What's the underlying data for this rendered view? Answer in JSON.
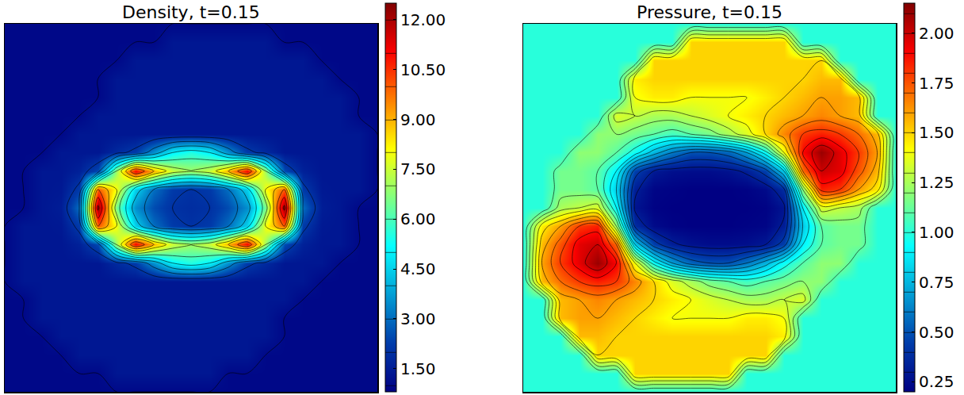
{
  "chart_data": [
    {
      "type": "heatmap",
      "title": "Density, t=0.15",
      "color": "jet",
      "tick_labels": false,
      "colorbar_range": [
        0.8,
        12.5
      ],
      "colorbar_ticks": [
        {
          "value": 1.5,
          "label": "1.50"
        },
        {
          "value": 3,
          "label": "3.00"
        },
        {
          "value": 4.5,
          "label": "4.50"
        },
        {
          "value": 6,
          "label": "6.00"
        },
        {
          "value": 7.5,
          "label": "7.50"
        },
        {
          "value": 9,
          "label": "9.00"
        },
        {
          "value": 10.5,
          "label": "10.50"
        },
        {
          "value": 12,
          "label": "12.00"
        }
      ],
      "cells": [
        [
          1,
          1,
          1,
          1,
          1,
          1,
          1,
          1,
          1,
          1,
          1,
          1,
          1,
          1,
          1,
          1,
          1,
          1,
          1,
          1,
          1
        ],
        [
          1,
          1,
          1,
          1,
          1,
          1,
          1,
          1,
          1,
          1.35,
          1.35,
          1.35,
          1.35,
          1.35,
          1.35,
          1,
          1,
          1,
          1,
          1,
          1
        ],
        [
          1,
          1,
          1,
          1,
          1,
          1,
          1,
          1.35,
          1.35,
          1.35,
          1.35,
          1.35,
          1.35,
          1.35,
          1.35,
          1.35,
          1.35,
          1,
          1,
          1,
          1
        ],
        [
          1,
          1,
          1,
          1,
          1,
          1,
          1.35,
          1.35,
          1.35,
          1.35,
          1.35,
          1.35,
          1.35,
          1.35,
          1.35,
          1.35,
          1.35,
          1.35,
          1,
          1,
          1
        ],
        [
          1,
          1,
          1,
          1,
          1,
          1,
          1.35,
          1.35,
          1.35,
          1.35,
          1.35,
          1.35,
          1.35,
          1.35,
          1.35,
          1.35,
          1.35,
          1.35,
          1.35,
          1,
          1
        ],
        [
          1,
          1,
          1,
          1,
          1,
          1.35,
          1.35,
          1.35,
          1.35,
          1.35,
          1.35,
          1.35,
          1.35,
          1.35,
          1.35,
          1.35,
          1.35,
          1.35,
          1.35,
          1,
          1
        ],
        [
          1,
          1,
          1,
          1,
          1.35,
          1.35,
          1.35,
          1.35,
          1.35,
          1.35,
          1.35,
          1.35,
          1.35,
          1.35,
          1.35,
          1.35,
          1.35,
          1.35,
          1.35,
          1.35,
          1
        ],
        [
          1,
          1,
          1,
          1.35,
          1.35,
          1.35,
          1.8,
          2.2,
          3.5,
          5,
          5.5,
          5,
          3.5,
          2.2,
          1.8,
          1.35,
          1.35,
          1.35,
          1.35,
          1.35,
          1
        ],
        [
          1,
          1,
          1.35,
          1.35,
          1.6,
          2.5,
          7,
          11,
          9,
          7.5,
          7,
          7.5,
          9,
          11,
          7,
          2.5,
          1.6,
          1.35,
          1.35,
          1.35,
          1
        ],
        [
          1,
          1,
          1.35,
          1.4,
          2.2,
          10,
          8,
          4.5,
          3,
          2.2,
          2,
          2.2,
          3,
          4.5,
          8,
          10,
          2.2,
          1.4,
          1.35,
          1.35,
          1
        ],
        [
          1,
          1,
          1.35,
          1.5,
          3,
          12.3,
          6.5,
          3.5,
          2.5,
          2,
          1.9,
          2,
          2.5,
          3.5,
          6.5,
          12.3,
          3,
          1.5,
          1.35,
          1,
          1
        ],
        [
          1,
          1.35,
          1.35,
          1.4,
          2.2,
          10,
          8,
          4.5,
          3,
          2.2,
          2,
          2.2,
          3,
          4.5,
          8,
          10,
          2.2,
          1.4,
          1.35,
          1,
          1
        ],
        [
          1,
          1.35,
          1.35,
          1.35,
          1.6,
          2.5,
          7,
          11,
          9,
          7.5,
          7,
          7.5,
          9,
          11,
          7,
          2.5,
          1.6,
          1.35,
          1.35,
          1,
          1
        ],
        [
          1,
          1.35,
          1.35,
          1.35,
          1.35,
          1.35,
          1.8,
          2.2,
          3.5,
          5,
          5.5,
          5,
          3.5,
          2.2,
          1.8,
          1.35,
          1.35,
          1.35,
          1,
          1,
          1
        ],
        [
          1,
          1.35,
          1.35,
          1.35,
          1.35,
          1.35,
          1.35,
          1.35,
          1.35,
          1.35,
          1.35,
          1.35,
          1.35,
          1.35,
          1.35,
          1.35,
          1.35,
          1,
          1,
          1,
          1
        ],
        [
          1,
          1,
          1.35,
          1.35,
          1.35,
          1.35,
          1.35,
          1.35,
          1.35,
          1.35,
          1.35,
          1.35,
          1.35,
          1.35,
          1.35,
          1.35,
          1,
          1,
          1,
          1,
          1
        ],
        [
          1,
          1,
          1.35,
          1.35,
          1.35,
          1.35,
          1.35,
          1.35,
          1.35,
          1.35,
          1.35,
          1.35,
          1.35,
          1.35,
          1.35,
          1,
          1,
          1,
          1,
          1,
          1
        ],
        [
          1,
          1,
          1,
          1.35,
          1.35,
          1.35,
          1.35,
          1.35,
          1.35,
          1.35,
          1.35,
          1.35,
          1.35,
          1.35,
          1.35,
          1,
          1,
          1,
          1,
          1,
          1
        ],
        [
          1,
          1,
          1,
          1,
          1.35,
          1.35,
          1.35,
          1.35,
          1.35,
          1.35,
          1.35,
          1.35,
          1.35,
          1.35,
          1,
          1,
          1,
          1,
          1,
          1,
          1
        ],
        [
          1,
          1,
          1,
          1,
          1,
          1,
          1.35,
          1.35,
          1.35,
          1.35,
          1.35,
          1.35,
          1,
          1,
          1,
          1,
          1,
          1,
          1,
          1,
          1
        ],
        [
          1,
          1,
          1,
          1,
          1,
          1,
          1,
          1,
          1,
          1,
          1,
          1,
          1,
          1,
          1,
          1,
          1,
          1,
          1,
          1,
          1
        ]
      ]
    },
    {
      "type": "heatmap",
      "title": "Pressure, t=0.15",
      "color": "jet",
      "tick_labels": false,
      "colorbar_range": [
        0.2,
        2.15
      ],
      "colorbar_ticks": [
        0.25,
        {
          "value": 0.5,
          "label": "0.50"
        },
        0.75,
        {
          "value": 1,
          "label": "1.00"
        },
        1.25,
        {
          "value": 1.5,
          "label": "1.50"
        },
        1.75,
        {
          "value": 2,
          "label": "2.00"
        }
      ],
      "cells": [
        [
          1,
          1,
          1,
          1,
          1,
          1,
          1,
          1,
          1,
          1,
          1,
          1,
          1,
          1,
          1,
          1,
          1,
          1,
          1,
          1,
          1
        ],
        [
          1,
          1,
          1,
          1,
          1,
          1,
          1,
          1,
          1,
          1.5,
          1.5,
          1.5,
          1.5,
          1.5,
          1.5,
          1,
          1,
          1,
          1,
          1,
          1
        ],
        [
          1,
          1,
          1,
          1,
          1,
          1,
          1,
          1.5,
          1.5,
          1.5,
          1.5,
          1.5,
          1.5,
          1.5,
          1.5,
          1.5,
          1.5,
          1,
          1,
          1,
          1
        ],
        [
          1,
          1,
          1,
          1,
          1,
          1,
          1.45,
          1.5,
          1.5,
          1.5,
          1.5,
          1.5,
          1.5,
          1.5,
          1.5,
          1.5,
          1.55,
          1.55,
          1,
          1,
          1
        ],
        [
          1,
          1,
          1,
          1,
          1,
          1,
          1.4,
          1.45,
          1.45,
          1.4,
          1.4,
          1.4,
          1.4,
          1.45,
          1.5,
          1.55,
          1.6,
          1.6,
          1.55,
          1,
          1
        ],
        [
          1,
          1,
          1,
          1,
          1,
          1.35,
          1.3,
          1.25,
          1.25,
          1.3,
          1.35,
          1.4,
          1.45,
          1.5,
          1.55,
          1.6,
          1.65,
          1.6,
          1.55,
          1,
          1
        ],
        [
          1,
          1,
          1,
          1,
          1.2,
          1.2,
          1.15,
          1.1,
          1.05,
          1.1,
          1.15,
          1.25,
          1.35,
          1.5,
          1.65,
          1.8,
          1.85,
          1.8,
          1.7,
          1.55,
          1
        ],
        [
          1,
          1,
          1,
          1.2,
          1.2,
          1.1,
          0.95,
          0.75,
          0.6,
          0.5,
          0.5,
          0.55,
          0.7,
          0.95,
          1.4,
          1.9,
          2.1,
          1.95,
          1.8,
          1.6,
          1
        ],
        [
          1,
          1,
          1.15,
          1.15,
          1.1,
          0.9,
          0.45,
          0.3,
          0.26,
          0.25,
          0.25,
          0.27,
          0.32,
          0.45,
          0.8,
          1.7,
          2.0,
          1.95,
          1.75,
          1.55,
          1
        ],
        [
          1,
          1,
          1.15,
          1.15,
          1.1,
          0.8,
          0.32,
          0.22,
          0.21,
          0.2,
          0.2,
          0.2,
          0.21,
          0.24,
          0.38,
          1.2,
          1.85,
          1.8,
          1.6,
          1.45,
          1
        ],
        [
          1,
          1,
          1.25,
          1.3,
          1.35,
          0.9,
          0.28,
          0.21,
          0.2,
          0.2,
          0.2,
          0.2,
          0.2,
          0.21,
          0.28,
          0.9,
          1.35,
          1.3,
          1.25,
          1,
          1
        ],
        [
          1,
          1.45,
          1.6,
          1.8,
          1.85,
          1.2,
          0.38,
          0.24,
          0.21,
          0.2,
          0.2,
          0.2,
          0.21,
          0.22,
          0.32,
          0.8,
          1.1,
          1.15,
          1.15,
          1,
          1
        ],
        [
          1,
          1.55,
          1.75,
          1.95,
          2.0,
          1.7,
          0.8,
          0.45,
          0.32,
          0.27,
          0.25,
          0.25,
          0.26,
          0.3,
          0.45,
          0.9,
          1.1,
          1.15,
          1.15,
          1,
          1
        ],
        [
          1,
          1.6,
          1.8,
          1.95,
          2.1,
          1.9,
          1.4,
          0.95,
          0.7,
          0.55,
          0.5,
          0.5,
          0.6,
          0.75,
          0.95,
          1.1,
          1.2,
          1.2,
          1,
          1,
          1
        ],
        [
          1,
          1.55,
          1.7,
          1.8,
          1.85,
          1.8,
          1.65,
          1.5,
          1.35,
          1.25,
          1.15,
          1.1,
          1.05,
          1.1,
          1.15,
          1.2,
          1.2,
          1,
          1,
          1,
          1
        ],
        [
          1,
          1,
          1.55,
          1.6,
          1.65,
          1.6,
          1.55,
          1.5,
          1.45,
          1.4,
          1.35,
          1.3,
          1.25,
          1.25,
          1.3,
          1.35,
          1,
          1,
          1,
          1,
          1
        ],
        [
          1,
          1,
          1.55,
          1.6,
          1.6,
          1.55,
          1.5,
          1.45,
          1.4,
          1.4,
          1.4,
          1.4,
          1.45,
          1.45,
          1.4,
          1,
          1,
          1,
          1,
          1,
          1
        ],
        [
          1,
          1,
          1,
          1.55,
          1.55,
          1.5,
          1.5,
          1.5,
          1.5,
          1.5,
          1.5,
          1.5,
          1.5,
          1.5,
          1.45,
          1,
          1,
          1,
          1,
          1,
          1
        ],
        [
          1,
          1,
          1,
          1,
          1.5,
          1.5,
          1.5,
          1.5,
          1.5,
          1.5,
          1.5,
          1.5,
          1.5,
          1.5,
          1,
          1,
          1,
          1,
          1,
          1,
          1
        ],
        [
          1,
          1,
          1,
          1,
          1,
          1,
          1.5,
          1.5,
          1.5,
          1.5,
          1.5,
          1.5,
          1,
          1,
          1,
          1,
          1,
          1,
          1,
          1,
          1
        ],
        [
          1,
          1,
          1,
          1,
          1,
          1,
          1,
          1,
          1,
          1,
          1,
          1,
          1,
          1,
          1,
          1,
          1,
          1,
          1,
          1,
          1
        ]
      ]
    }
  ]
}
